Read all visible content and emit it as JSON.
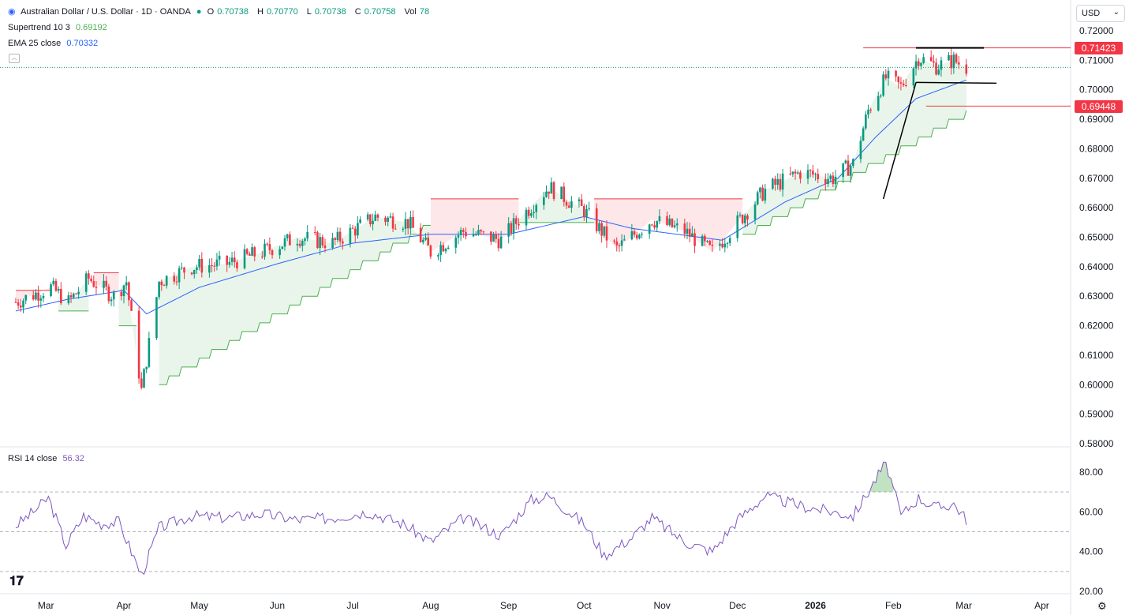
{
  "header": {
    "symbol_title": "Australian Dollar / U.S. Dollar · 1D · OANDA",
    "ohlc": [
      {
        "label": "O",
        "value": "0.70738"
      },
      {
        "label": "H",
        "value": "0.70770"
      },
      {
        "label": "L",
        "value": "0.70738"
      },
      {
        "label": "C",
        "value": "0.70758"
      }
    ],
    "vol_label": "Vol",
    "vol_value": "78",
    "currency": "USD"
  },
  "indicators": {
    "supertrend": {
      "label": "Supertrend 10 3",
      "value": "0.69192"
    },
    "ema": {
      "label": "EMA 25 close",
      "value": "0.70332"
    },
    "rsi": {
      "label": "RSI 14 close",
      "value": "56.32"
    }
  },
  "price_tags": [
    {
      "value": "0.71423",
      "color": "#f23645"
    },
    {
      "value": "0.69448",
      "color": "#f23645"
    }
  ],
  "colors": {
    "up": "#089981",
    "down": "#f23645",
    "ema": "#2962ff",
    "supertrend_up": "#4caf50",
    "supertrend_down": "#f23645",
    "rsi": "#7e57c2",
    "annotation": "#000000"
  },
  "chart_data": [
    {
      "type": "candlestick",
      "title": "Australian Dollar / U.S. Dollar · 1D · OANDA",
      "ylim": [
        0.58,
        0.72
      ],
      "y_ticks": [
        "0.72000",
        "0.71000",
        "0.70000",
        "0.69000",
        "0.68000",
        "0.67000",
        "0.66000",
        "0.65000",
        "0.64000",
        "0.63000",
        "0.62000",
        "0.61000",
        "0.60000",
        "0.59000",
        "0.58000"
      ],
      "x_tick_labels": [
        "Mar",
        "Apr",
        "May",
        "Jun",
        "Jul",
        "Aug",
        "Sep",
        "Oct",
        "Nov",
        "Dec",
        "2026",
        "Feb",
        "Mar",
        "Apr"
      ],
      "close_path": [
        [
          "2025-02-17",
          0.628
        ],
        [
          "2025-03-03",
          0.633
        ],
        [
          "2025-03-10",
          0.628
        ],
        [
          "2025-03-18",
          0.636
        ],
        [
          "2025-03-28",
          0.63
        ],
        [
          "2025-04-02",
          0.635
        ],
        [
          "2025-04-08",
          0.598
        ],
        [
          "2025-04-15",
          0.635
        ],
        [
          "2025-04-28",
          0.64
        ],
        [
          "2025-05-12",
          0.641
        ],
        [
          "2025-05-26",
          0.645
        ],
        [
          "2025-06-09",
          0.65
        ],
        [
          "2025-06-23",
          0.648
        ],
        [
          "2025-07-10",
          0.657
        ],
        [
          "2025-07-23",
          0.655
        ],
        [
          "2025-08-01",
          0.645
        ],
        [
          "2025-08-14",
          0.652
        ],
        [
          "2025-08-29",
          0.649
        ],
        [
          "2025-09-05",
          0.656
        ],
        [
          "2025-09-17",
          0.667
        ],
        [
          "2025-10-01",
          0.659
        ],
        [
          "2025-10-14",
          0.646
        ],
        [
          "2025-10-28",
          0.656
        ],
        [
          "2025-11-10",
          0.652
        ],
        [
          "2025-11-21",
          0.645
        ],
        [
          "2025-12-01",
          0.655
        ],
        [
          "2025-12-12",
          0.666
        ],
        [
          "2025-12-26",
          0.672
        ],
        [
          "2026-01-08",
          0.67
        ],
        [
          "2026-01-16",
          0.675
        ],
        [
          "2026-01-22",
          0.693
        ],
        [
          "2026-01-29",
          0.704
        ],
        [
          "2026-02-04",
          0.701
        ],
        [
          "2026-02-11",
          0.711
        ],
        [
          "2026-02-18",
          0.708
        ],
        [
          "2026-02-25",
          0.71
        ],
        [
          "2026-03-02",
          0.7076
        ]
      ],
      "ema_25": [
        [
          "2025-02-17",
          0.625
        ],
        [
          "2025-03-10",
          0.629
        ],
        [
          "2025-04-01",
          0.632
        ],
        [
          "2025-04-10",
          0.624
        ],
        [
          "2025-05-01",
          0.633
        ],
        [
          "2025-06-01",
          0.641
        ],
        [
          "2025-07-01",
          0.648
        ],
        [
          "2025-08-01",
          0.651
        ],
        [
          "2025-09-01",
          0.651
        ],
        [
          "2025-10-01",
          0.657
        ],
        [
          "2025-10-20",
          0.653
        ],
        [
          "2025-11-25",
          0.649
        ],
        [
          "2025-12-20",
          0.662
        ],
        [
          "2026-01-10",
          0.67
        ],
        [
          "2026-01-25",
          0.684
        ],
        [
          "2026-02-10",
          0.697
        ],
        [
          "2026-03-02",
          0.7033
        ]
      ],
      "supertrend": {
        "value": 0.69192,
        "segments": [
          {
            "trend": "down",
            "from": "2025-02-17",
            "to": "2025-03-03",
            "level": 0.632
          },
          {
            "trend": "up",
            "from": "2025-03-06",
            "to": "2025-03-18",
            "level": 0.625
          },
          {
            "trend": "down",
            "from": "2025-03-20",
            "to": "2025-03-30",
            "level": 0.638
          },
          {
            "trend": "up",
            "from": "2025-03-30",
            "to": "2025-04-06",
            "level": 0.62
          },
          {
            "trend": "up",
            "from": "2025-04-15",
            "to": "2025-08-01",
            "level_start": 0.6,
            "level_end": 0.654
          },
          {
            "trend": "down",
            "from": "2025-08-01",
            "to": "2025-09-05",
            "level": 0.663
          },
          {
            "trend": "up",
            "from": "2025-09-05",
            "to": "2025-10-05",
            "level": 0.655
          },
          {
            "trend": "down",
            "from": "2025-10-05",
            "to": "2025-12-03",
            "level": 0.663
          },
          {
            "trend": "up",
            "from": "2025-12-03",
            "to": "2026-03-02",
            "level_start": 0.65,
            "level_end": 0.6919
          }
        ]
      },
      "annotations": {
        "resistance": {
          "from": "2026-02-10",
          "to": "2026-03-09",
          "value": 0.7142
        },
        "support": {
          "from": "2026-02-10",
          "to": "2026-03-14",
          "value": 0.7025
        },
        "trend_line": {
          "from": [
            "2026-01-28",
            0.663
          ],
          "to": [
            "2026-02-10",
            0.7025
          ]
        },
        "stop_line": {
          "from": "2026-02-14",
          "to": "2026-03-04",
          "value": 0.69448
        }
      }
    },
    {
      "type": "line",
      "title": "RSI 14 close",
      "ylim": [
        20,
        85
      ],
      "y_ticks": [
        "80.00",
        "60.00",
        "40.00",
        "20.00"
      ],
      "levels": [
        70,
        50,
        30
      ],
      "series": [
        {
          "name": "RSI 14 close",
          "points": [
            [
              "2025-02-17",
              53
            ],
            [
              "2025-02-24",
              60
            ],
            [
              "2025-03-02",
              67
            ],
            [
              "2025-03-09",
              43
            ],
            [
              "2025-03-16",
              58
            ],
            [
              "2025-03-23",
              54
            ],
            [
              "2025-03-30",
              55
            ],
            [
              "2025-04-08",
              28
            ],
            [
              "2025-04-15",
              52
            ],
            [
              "2025-04-28",
              58
            ],
            [
              "2025-05-12",
              57
            ],
            [
              "2025-05-26",
              59
            ],
            [
              "2025-06-09",
              56
            ],
            [
              "2025-06-23",
              57
            ],
            [
              "2025-07-07",
              60
            ],
            [
              "2025-07-21",
              54
            ],
            [
              "2025-08-01",
              45
            ],
            [
              "2025-08-14",
              57
            ],
            [
              "2025-08-29",
              48
            ],
            [
              "2025-09-10",
              66
            ],
            [
              "2025-09-17",
              68
            ],
            [
              "2025-10-01",
              54
            ],
            [
              "2025-10-09",
              38
            ],
            [
              "2025-10-20",
              47
            ],
            [
              "2025-10-28",
              57
            ],
            [
              "2025-11-10",
              45
            ],
            [
              "2025-11-21",
              40
            ],
            [
              "2025-12-01",
              56
            ],
            [
              "2025-12-12",
              68
            ],
            [
              "2025-12-26",
              63
            ],
            [
              "2026-01-08",
              60
            ],
            [
              "2026-01-16",
              58
            ],
            [
              "2026-01-22",
              70
            ],
            [
              "2026-01-29",
              85
            ],
            [
              "2026-02-04",
              58
            ],
            [
              "2026-02-11",
              67
            ],
            [
              "2026-02-18",
              62
            ],
            [
              "2026-02-25",
              64
            ],
            [
              "2026-03-02",
              56.3
            ]
          ]
        }
      ]
    }
  ]
}
